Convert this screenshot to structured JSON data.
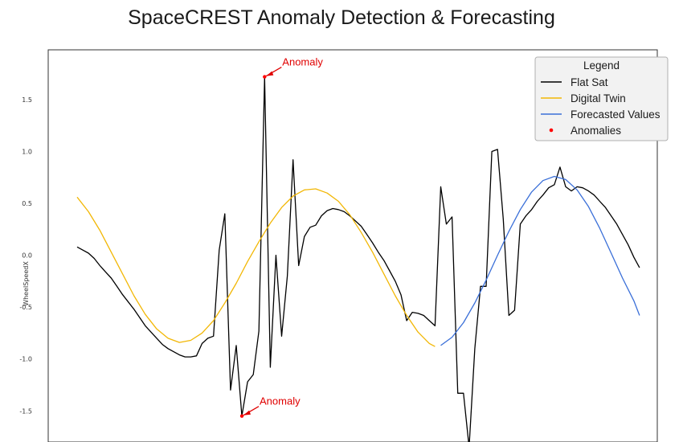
{
  "chart_data": {
    "type": "line",
    "title": "SpaceCREST Anomaly Detection & Forecasting",
    "xlabel": "",
    "ylabel": "WheelSpeedX",
    "xlim": [
      0,
      100
    ],
    "ylim": [
      -1.8,
      1.98
    ],
    "yticks": [
      -1.5,
      -1.0,
      -0.5,
      0.0,
      0.5,
      1.0,
      1.5
    ],
    "ytick_labels": [
      "-1.5",
      "-1.0",
      "-0.5",
      "0.0",
      "0.5",
      "1.0",
      "1.5"
    ],
    "grid": false,
    "legend": {
      "title": "Legend",
      "position": "top-right",
      "entries": [
        {
          "label": "Flat Sat",
          "color": "#000000",
          "marker": "line"
        },
        {
          "label": "Digital Twin",
          "color": "#f2b705",
          "marker": "line"
        },
        {
          "label": "Forecasted Values",
          "color": "#3a6fd8",
          "marker": "line"
        },
        {
          "label": "Anomalies",
          "color": "#ff0000",
          "marker": "dot"
        }
      ]
    },
    "series": [
      {
        "name": "Flat Sat",
        "color": "#000000",
        "points": [
          [
            0,
            0.08
          ],
          [
            1,
            0.05
          ],
          [
            2,
            0.02
          ],
          [
            3,
            -0.03
          ],
          [
            4,
            -0.1
          ],
          [
            5,
            -0.16
          ],
          [
            6,
            -0.22
          ],
          [
            7,
            -0.3
          ],
          [
            8,
            -0.38
          ],
          [
            9,
            -0.45
          ],
          [
            10,
            -0.52
          ],
          [
            11,
            -0.6
          ],
          [
            12,
            -0.68
          ],
          [
            13,
            -0.74
          ],
          [
            14,
            -0.8
          ],
          [
            15,
            -0.86
          ],
          [
            16,
            -0.9
          ],
          [
            17,
            -0.93
          ],
          [
            18,
            -0.96
          ],
          [
            19,
            -0.98
          ],
          [
            20,
            -0.98
          ],
          [
            21,
            -0.97
          ],
          [
            22,
            -0.85
          ],
          [
            23,
            -0.8
          ],
          [
            24,
            -0.78
          ],
          [
            25,
            0.05
          ],
          [
            26,
            0.4
          ],
          [
            27,
            -1.3
          ],
          [
            28,
            -0.87
          ],
          [
            29,
            -1.55
          ],
          [
            30,
            -1.22
          ],
          [
            31,
            -1.15
          ],
          [
            32,
            -0.73
          ],
          [
            33,
            1.72
          ],
          [
            34,
            -1.08
          ],
          [
            35,
            0.0
          ],
          [
            36,
            -0.78
          ],
          [
            37,
            -0.2
          ],
          [
            38,
            0.92
          ],
          [
            39,
            -0.1
          ],
          [
            40,
            0.18
          ],
          [
            41,
            0.27
          ],
          [
            42,
            0.29
          ],
          [
            43,
            0.38
          ],
          [
            44,
            0.43
          ],
          [
            45,
            0.45
          ],
          [
            46,
            0.44
          ],
          [
            47,
            0.42
          ],
          [
            48,
            0.38
          ],
          [
            49,
            0.33
          ],
          [
            50,
            0.28
          ],
          [
            51,
            0.2
          ],
          [
            52,
            0.12
          ],
          [
            53,
            0.03
          ],
          [
            54,
            -0.05
          ],
          [
            55,
            -0.15
          ],
          [
            56,
            -0.25
          ],
          [
            57,
            -0.38
          ],
          [
            58,
            -0.63
          ],
          [
            59,
            -0.55
          ],
          [
            60,
            -0.56
          ],
          [
            61,
            -0.58
          ],
          [
            62,
            -0.63
          ],
          [
            63,
            -0.68
          ],
          [
            64,
            0.66
          ],
          [
            65,
            0.3
          ],
          [
            66,
            0.37
          ],
          [
            67,
            -1.33
          ],
          [
            68,
            -1.33
          ],
          [
            69,
            -1.85
          ],
          [
            70,
            -0.9
          ],
          [
            71,
            -0.3
          ],
          [
            72,
            -0.3
          ],
          [
            73,
            1.0
          ],
          [
            74,
            1.02
          ],
          [
            75,
            0.35
          ],
          [
            76,
            -0.58
          ],
          [
            77,
            -0.53
          ],
          [
            78,
            0.3
          ],
          [
            79,
            0.38
          ],
          [
            80,
            0.44
          ],
          [
            81,
            0.52
          ],
          [
            82,
            0.58
          ],
          [
            83,
            0.65
          ],
          [
            84,
            0.68
          ],
          [
            85,
            0.85
          ],
          [
            86,
            0.66
          ],
          [
            87,
            0.62
          ],
          [
            88,
            0.66
          ],
          [
            89,
            0.65
          ],
          [
            90,
            0.62
          ],
          [
            91,
            0.58
          ],
          [
            92,
            0.52
          ],
          [
            93,
            0.46
          ],
          [
            94,
            0.38
          ],
          [
            95,
            0.3
          ],
          [
            96,
            0.2
          ],
          [
            97,
            0.1
          ],
          [
            98,
            -0.02
          ],
          [
            99,
            -0.12
          ]
        ]
      },
      {
        "name": "Digital Twin",
        "color": "#f2b705",
        "points": [
          [
            0,
            0.56
          ],
          [
            2,
            0.42
          ],
          [
            4,
            0.24
          ],
          [
            6,
            0.03
          ],
          [
            8,
            -0.18
          ],
          [
            10,
            -0.39
          ],
          [
            12,
            -0.57
          ],
          [
            14,
            -0.71
          ],
          [
            16,
            -0.8
          ],
          [
            18,
            -0.84
          ],
          [
            20,
            -0.82
          ],
          [
            22,
            -0.75
          ],
          [
            24,
            -0.63
          ],
          [
            26,
            -0.46
          ],
          [
            28,
            -0.27
          ],
          [
            30,
            -0.06
          ],
          [
            32,
            0.13
          ],
          [
            34,
            0.31
          ],
          [
            36,
            0.46
          ],
          [
            38,
            0.57
          ],
          [
            40,
            0.63
          ],
          [
            42,
            0.64
          ],
          [
            44,
            0.6
          ],
          [
            46,
            0.52
          ],
          [
            48,
            0.39
          ],
          [
            50,
            0.22
          ],
          [
            52,
            0.03
          ],
          [
            54,
            -0.18
          ],
          [
            56,
            -0.39
          ],
          [
            58,
            -0.58
          ],
          [
            60,
            -0.74
          ],
          [
            62,
            -0.85
          ],
          [
            63,
            -0.88
          ]
        ]
      },
      {
        "name": "Forecasted Values",
        "color": "#3a6fd8",
        "points": [
          [
            64,
            -0.87
          ],
          [
            66,
            -0.79
          ],
          [
            68,
            -0.65
          ],
          [
            70,
            -0.46
          ],
          [
            72,
            -0.24
          ],
          [
            74,
            0.0
          ],
          [
            76,
            0.23
          ],
          [
            78,
            0.44
          ],
          [
            80,
            0.61
          ],
          [
            82,
            0.72
          ],
          [
            84,
            0.76
          ],
          [
            86,
            0.73
          ],
          [
            88,
            0.63
          ],
          [
            90,
            0.47
          ],
          [
            92,
            0.26
          ],
          [
            94,
            0.02
          ],
          [
            96,
            -0.22
          ],
          [
            98,
            -0.44
          ],
          [
            99,
            -0.58
          ]
        ]
      }
    ],
    "anomalies": [
      {
        "x": 33,
        "y": 1.72,
        "label": "Anomaly"
      },
      {
        "x": 29,
        "y": -1.55,
        "label": "Anomaly"
      }
    ]
  }
}
